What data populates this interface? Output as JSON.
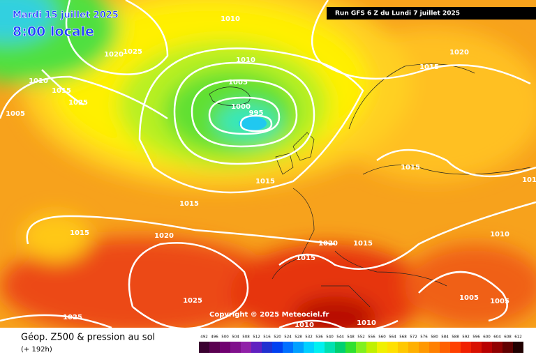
{
  "map": {
    "title": "Mardi 15 juillet 2025",
    "subtitle": "8:00 locale",
    "run": "Run GFS 6 Z du Lundi 7 juillet 2025",
    "copyright": "Copyright © 2025 Meteociel.fr",
    "legend_title": "Géop. Z500 & pression au sol",
    "legend_subtitle": "(+ 192h)",
    "isobar_labels": [
      1010,
      1020,
      1025,
      1010,
      1015,
      1020,
      1010,
      1015,
      1025,
      1005,
      1005,
      1000,
      995,
      1015,
      1015,
      1015,
      1015,
      1020,
      1020,
      1015,
      1015,
      1010,
      1010,
      1025,
      1025,
      1010,
      1010,
      1005,
      1005
    ],
    "scale": {
      "values": [
        492,
        496,
        500,
        504,
        508,
        512,
        516,
        520,
        524,
        528,
        532,
        536,
        540,
        544,
        548,
        552,
        556,
        560,
        564,
        568,
        572,
        576,
        580,
        584,
        588,
        592,
        596,
        600,
        604,
        608,
        612
      ],
      "colors": [
        "#3a0030",
        "#5a0050",
        "#700070",
        "#80108c",
        "#9020a8",
        "#6020c0",
        "#2030d0",
        "#0040f0",
        "#0070ff",
        "#00a0ff",
        "#00d0ff",
        "#00f0f0",
        "#00e0b0",
        "#00d070",
        "#30e030",
        "#80f020",
        "#c0f000",
        "#f0f000",
        "#ffe000",
        "#ffc800",
        "#ffb000",
        "#ff9800",
        "#ff8000",
        "#ff6000",
        "#ff4000",
        "#f02000",
        "#d81000",
        "#b80000",
        "#900000",
        "#600000",
        "#200000"
      ]
    }
  }
}
